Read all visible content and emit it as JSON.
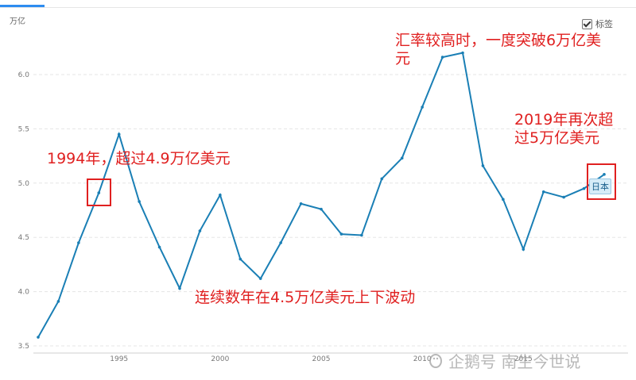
{
  "header": {
    "unit": "万亿",
    "legend_label": "标签",
    "legend_checked": true
  },
  "colors": {
    "line": "#1a7fb5",
    "annotation": "#e02020",
    "grid": "#e5e5e5"
  },
  "chart_data": {
    "type": "line",
    "title": "",
    "ylabel": "万亿",
    "xlim": [
      1990.8,
      2020.8
    ],
    "ylim": [
      3.5,
      6.3
    ],
    "yticks": [
      3.5,
      4.0,
      4.5,
      5.0,
      5.5,
      6.0
    ],
    "ytick_labels": [
      "3.5",
      "4.0",
      "4.5",
      "5.0",
      "5.5",
      "6.0"
    ],
    "xticks": [
      1995,
      2000,
      2005,
      2010,
      2015
    ],
    "xtick_labels": [
      "1995",
      "2000",
      "2005",
      "2010",
      "2015"
    ],
    "grid": "horizontal dashed",
    "series": [
      {
        "name": "日本",
        "x": [
          1991,
          1992,
          1993,
          1994,
          1995,
          1996,
          1997,
          1998,
          1999,
          2000,
          2001,
          2002,
          2003,
          2004,
          2005,
          2006,
          2007,
          2008,
          2009,
          2010,
          2011,
          2012,
          2013,
          2014,
          2015,
          2016,
          2017,
          2018,
          2019
        ],
        "values": [
          3.58,
          3.91,
          4.45,
          4.91,
          5.45,
          4.83,
          4.41,
          4.03,
          4.56,
          4.89,
          4.3,
          4.12,
          4.45,
          4.81,
          4.76,
          4.53,
          4.52,
          5.04,
          5.23,
          5.7,
          6.16,
          6.2,
          5.16,
          4.85,
          4.39,
          4.92,
          4.87,
          4.95,
          5.08
        ]
      }
    ]
  },
  "annotations": {
    "a1994": "1994年，超过4.9万亿美元",
    "a_fluct": "连续数年在4.5万亿美元上下波动",
    "a_peak_line1": "汇率较高时，一度突破6万亿美",
    "a_peak_line2": "元",
    "a2019_line1": "2019年再次超",
    "a2019_line2": "过5万亿美元"
  },
  "watermark": {
    "text": "企鹅号 南生今世说",
    "icon": "penguin-logo"
  }
}
